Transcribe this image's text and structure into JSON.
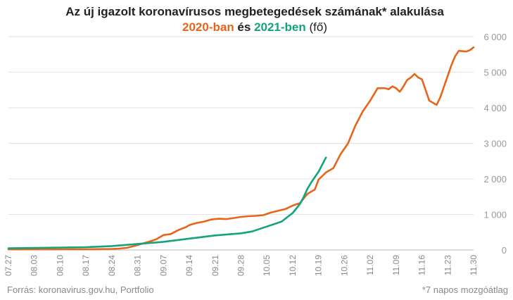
{
  "chart_data": {
    "type": "line",
    "title": "Az új igazolt koronavírusos megbetegedések számának* alakulása",
    "subtitle": {
      "part1": "2020-ban",
      "part2": " és ",
      "part3": "2021-ben",
      "part4": " (fő)"
    },
    "ylim": [
      0,
      6000
    ],
    "y_ticks": [
      0,
      1000,
      2000,
      3000,
      4000,
      5000,
      6000
    ],
    "y_tick_labels": [
      "0",
      "1 000",
      "2 000",
      "3 000",
      "4 000",
      "5 000",
      "6 000"
    ],
    "x_tick_labels": [
      "07.27",
      "08.03",
      "08.10",
      "08.17",
      "08.24",
      "08.31",
      "09.07",
      "09.14",
      "09.21",
      "09.28",
      "10.05",
      "10.12",
      "10.19",
      "10.26",
      "11.02",
      "11.09",
      "11.16",
      "11.23",
      "11.30"
    ],
    "grid": true,
    "legend": "in subtitle",
    "source": "Forrás: koronavirus.gov.hu, Portfolio",
    "note": "*7 napos mozgóátlag",
    "series": [
      {
        "name": "2020-ban",
        "color": "#e8641b",
        "x": [
          0,
          7,
          14,
          21,
          28,
          30,
          32,
          34,
          36,
          38,
          40,
          42,
          44,
          46,
          48,
          49,
          51,
          53,
          55,
          57,
          59,
          61,
          63,
          65,
          67,
          69,
          71,
          73,
          75,
          77,
          79,
          81,
          83,
          84,
          86,
          88,
          90,
          92,
          94,
          96,
          98,
          100,
          102,
          103,
          104,
          105,
          106,
          107,
          108,
          109,
          110,
          111,
          112,
          114,
          116,
          117,
          118,
          119,
          120,
          121,
          122,
          124,
          125,
          126
        ],
        "values": [
          20,
          20,
          20,
          20,
          30,
          40,
          60,
          110,
          170,
          230,
          300,
          420,
          450,
          560,
          640,
          700,
          760,
          800,
          860,
          880,
          870,
          900,
          930,
          950,
          960,
          980,
          1050,
          1100,
          1150,
          1250,
          1320,
          1580,
          1700,
          1980,
          2180,
          2300,
          2700,
          3000,
          3500,
          3900,
          4200,
          4550,
          4550,
          4520,
          4600,
          4550,
          4450,
          4600,
          4780,
          4850,
          4950,
          4850,
          4800,
          4200,
          4080,
          4300,
          4600,
          4900,
          5200,
          5450,
          5600,
          5580,
          5620,
          5700
        ]
      },
      {
        "name": "2021-ben",
        "color": "#12a47c",
        "x": [
          0,
          7,
          14,
          21,
          28,
          35,
          42,
          49,
          56,
          63,
          66,
          70,
          74,
          77,
          79,
          80,
          81,
          82,
          83,
          84,
          85,
          86
        ],
        "values": [
          50,
          60,
          70,
          80,
          110,
          170,
          230,
          320,
          410,
          470,
          520,
          660,
          800,
          1040,
          1300,
          1500,
          1720,
          1900,
          2050,
          2200,
          2400,
          2600
        ]
      }
    ]
  }
}
